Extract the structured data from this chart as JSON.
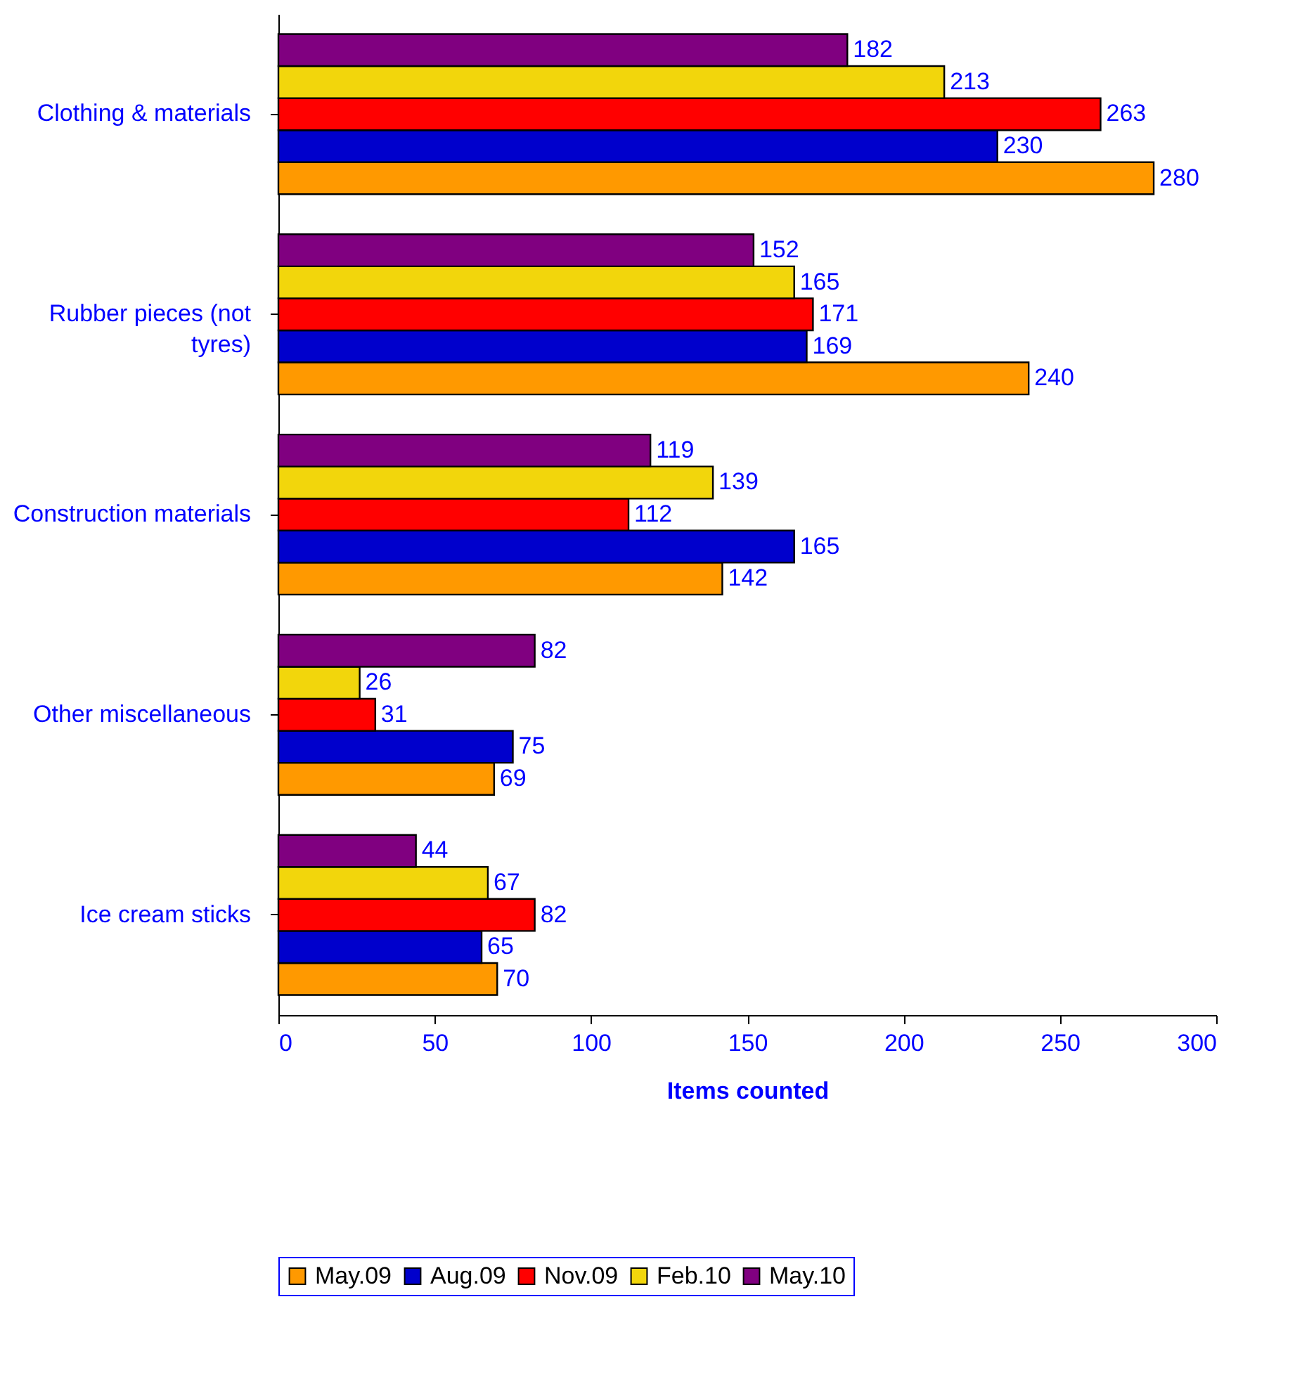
{
  "chart_data": {
    "type": "bar",
    "orientation": "horizontal",
    "xlabel": "Items counted",
    "categories": [
      "Clothing & materials",
      "Rubber pieces (not tyres)",
      "Construction materials",
      "Other miscellaneous",
      "Ice cream sticks"
    ],
    "series": [
      {
        "name": "May.09",
        "color": "#ff9900",
        "values": [
          280,
          240,
          142,
          69,
          70
        ]
      },
      {
        "name": "Aug.09",
        "color": "#0000cc",
        "values": [
          230,
          169,
          165,
          75,
          65
        ]
      },
      {
        "name": "Nov.09",
        "color": "#ff0000",
        "values": [
          263,
          171,
          112,
          31,
          82
        ]
      },
      {
        "name": "Feb.10",
        "color": "#f2d60c",
        "values": [
          213,
          165,
          139,
          26,
          67
        ]
      },
      {
        "name": "May.10",
        "color": "#800080",
        "values": [
          182,
          152,
          119,
          82,
          44
        ]
      }
    ],
    "xlim": [
      0,
      300
    ],
    "xticks": [
      0,
      50,
      100,
      150,
      200,
      250,
      300
    ],
    "grid": false,
    "legend": "bottom",
    "data_labels": true
  }
}
